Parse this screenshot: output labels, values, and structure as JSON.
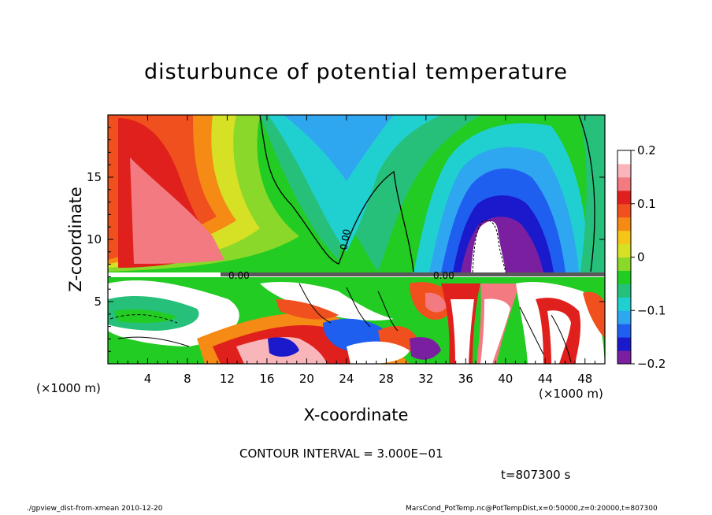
{
  "chart_data": {
    "type": "heatmap",
    "title": "disturbunce of potential temperature",
    "xlabel": "X-coordinate",
    "ylabel": "Z-coordinate",
    "x_unit": "(×1000 m)",
    "xlim": [
      0,
      50
    ],
    "ylim": [
      0,
      20
    ],
    "x_ticks": [
      "4",
      "8",
      "12",
      "16",
      "20",
      "24",
      "28",
      "32",
      "36",
      "40",
      "44",
      "48"
    ],
    "y_ticks": [
      "5",
      "10",
      "15"
    ],
    "colorbar": {
      "range": [
        -0.2,
        0.2
      ],
      "tick_labels": [
        "0.2",
        "0.1",
        "0",
        "−0.1",
        "−0.2"
      ],
      "colors": [
        "#7a1fa0",
        "#1a1acc",
        "#1f5ff0",
        "#2fa6f0",
        "#20d0d0",
        "#26c07a",
        "#22cc22",
        "#8ad82a",
        "#d6e024",
        "#f5c518",
        "#f58a14",
        "#f0501e",
        "#e0201c",
        "#f27a80",
        "#f9b6ba",
        "#ffffff"
      ]
    },
    "contour_labels": [
      "0.00",
      "0.00",
      "0.00"
    ],
    "contour_interval": "CONTOUR INTERVAL = 3.000E−01",
    "time_label": "t=807300 s"
  },
  "footer": {
    "left": "./gpview_dist-from-xmean  2010-12-20",
    "right": "MarsCond_PotTemp.nc@PotTempDist,x=0:50000,z=0:20000,t=807300"
  }
}
